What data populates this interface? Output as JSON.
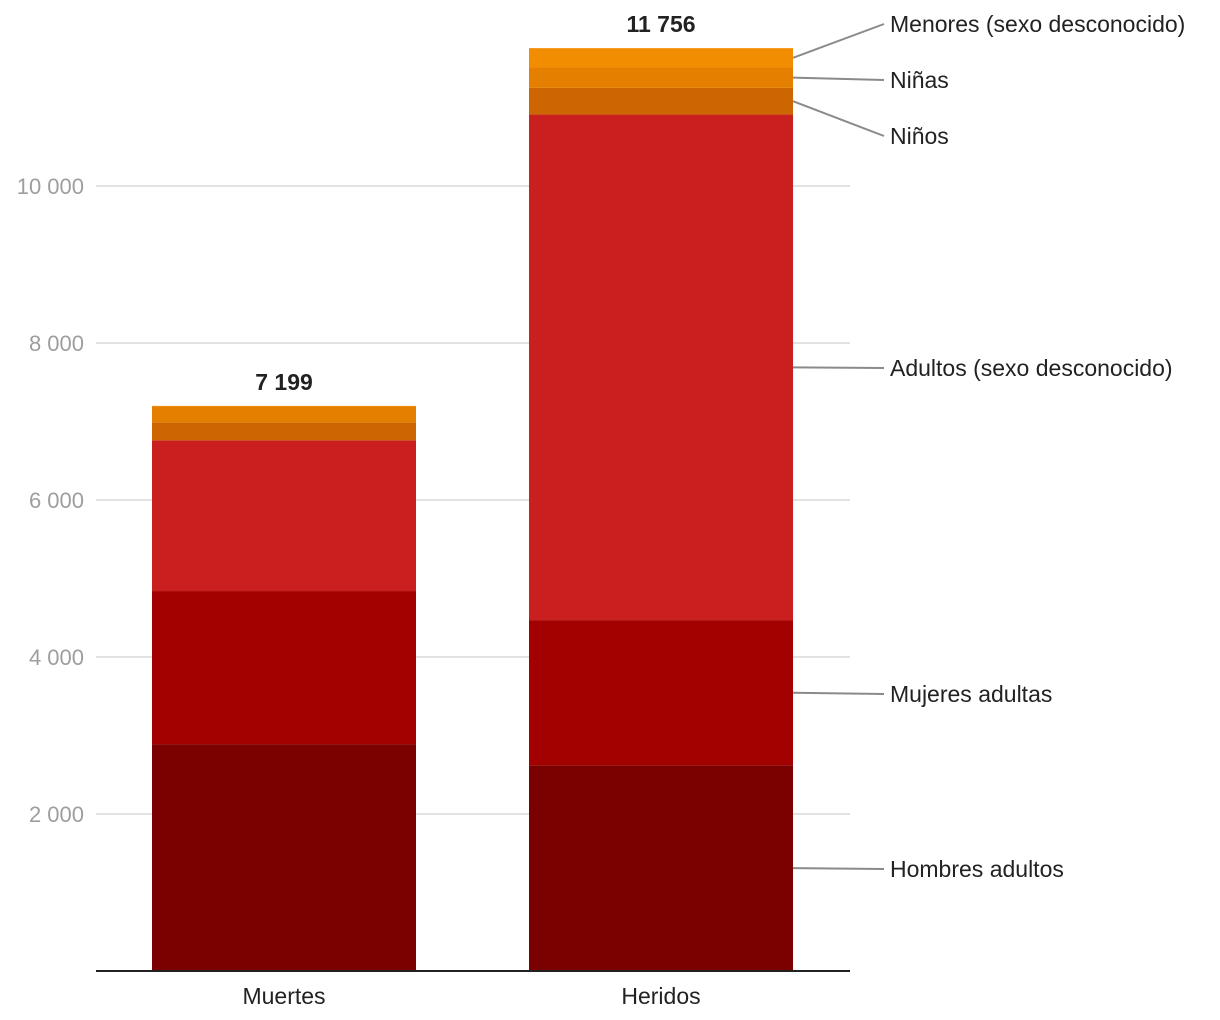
{
  "chart_data": {
    "type": "bar",
    "stacked": true,
    "categories": [
      "Muertes",
      "Heridos"
    ],
    "totals": [
      "7 199",
      "11 756"
    ],
    "series": [
      {
        "name": "Hombres adultos",
        "color": "#7b0000",
        "values": [
          2890,
          2620
        ]
      },
      {
        "name": "Mujeres adultas",
        "color": "#a30000",
        "values": [
          1950,
          1850
        ]
      },
      {
        "name": "Adultos (sexo desconocido)",
        "color": "#c91f1f",
        "values": [
          1920,
          6440
        ]
      },
      {
        "name": "Niños",
        "color": "#cd6600",
        "values": [
          230,
          340
        ]
      },
      {
        "name": "Niñas",
        "color": "#e57f00",
        "values": [
          200,
          260
        ]
      },
      {
        "name": "Menores (sexo desconocido)",
        "color": "#f28c00",
        "values": [
          9,
          246
        ]
      }
    ],
    "yticks": [
      "2 000",
      "4 000",
      "6 000",
      "8 000",
      "10 000"
    ],
    "ytick_values": [
      2000,
      4000,
      6000,
      8000,
      10000
    ],
    "ylim": [
      0,
      12000
    ],
    "grid": true,
    "legend_placement": "right, direct labels with leader lines"
  }
}
